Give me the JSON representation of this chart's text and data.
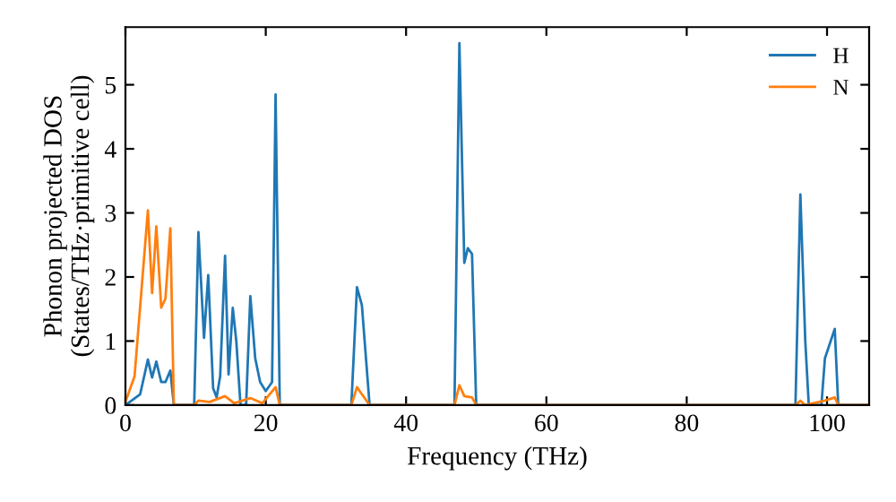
{
  "chart_data": {
    "type": "line",
    "xlabel": "Frequency (THz)",
    "ylabel": "Phonon projected DOS\n(States/THz·primitive cell)",
    "xlim": [
      0,
      106
    ],
    "ylim": [
      0,
      5.9
    ],
    "xticks": [
      0,
      20,
      40,
      60,
      80,
      100
    ],
    "yticks": [
      0,
      1,
      2,
      3,
      4,
      5
    ],
    "grid": false,
    "legend": "top right",
    "marker": "none",
    "line_style": "solid",
    "series": [
      {
        "name": "H",
        "color": "#1f77b4",
        "x": [
          0,
          2.1,
          3.2,
          3.8,
          4.4,
          5.1,
          5.7,
          6.4,
          6.9,
          9.8,
          10.4,
          11.2,
          11.8,
          12.5,
          13.0,
          13.5,
          14.2,
          14.7,
          15.3,
          15.8,
          16.4,
          17.2,
          17.8,
          18.5,
          19.2,
          20.0,
          20.9,
          21.4,
          22.0,
          32.2,
          33.0,
          33.7,
          34.8,
          46.9,
          47.6,
          48.3,
          48.8,
          49.4,
          50.0,
          95.5,
          96.2,
          96.9,
          97.4,
          99.2,
          99.7,
          101.1,
          101.6,
          106
        ],
        "values": [
          0,
          0.17,
          0.71,
          0.43,
          0.68,
          0.36,
          0.36,
          0.54,
          0,
          0,
          2.7,
          1.05,
          2.03,
          0.26,
          0.12,
          0.45,
          2.33,
          0.48,
          1.52,
          1.0,
          0,
          0,
          1.7,
          0.73,
          0.36,
          0.22,
          0.36,
          4.85,
          0,
          0,
          1.84,
          1.56,
          0,
          0,
          5.65,
          2.22,
          2.45,
          2.36,
          0,
          0,
          3.29,
          1.0,
          0,
          0,
          0.73,
          1.19,
          0,
          0
        ]
      },
      {
        "name": "N",
        "color": "#ff7f0e",
        "x": [
          0,
          1.3,
          3.2,
          3.8,
          4.4,
          5.1,
          5.7,
          6.4,
          6.9,
          9.8,
          10.4,
          12.0,
          14.2,
          15.5,
          17.8,
          19.5,
          21.4,
          22.0,
          32.2,
          33.0,
          33.7,
          34.8,
          46.9,
          47.6,
          48.3,
          49.4,
          50.0,
          95.5,
          96.2,
          96.9,
          99.7,
          101.1,
          101.6,
          106
        ],
        "values": [
          0.05,
          0.45,
          3.04,
          1.75,
          2.79,
          1.52,
          1.66,
          2.76,
          0,
          0,
          0.07,
          0.05,
          0.14,
          0.03,
          0.11,
          0.03,
          0.28,
          0,
          0,
          0.28,
          0.17,
          0,
          0,
          0.31,
          0.14,
          0.12,
          0,
          0,
          0.07,
          0,
          0.07,
          0.12,
          0,
          0
        ]
      }
    ]
  }
}
